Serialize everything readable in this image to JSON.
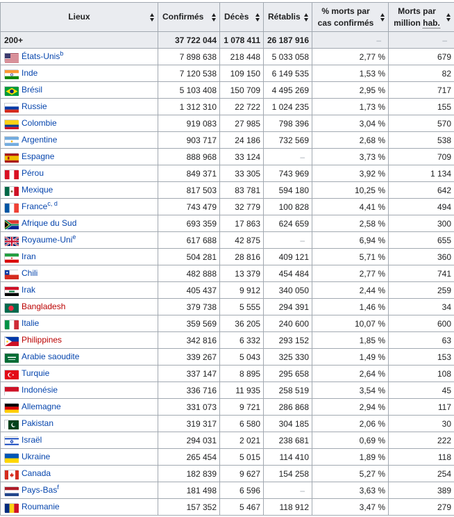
{
  "headers": [
    {
      "label": "Lieux"
    },
    {
      "label": "Confirmés"
    },
    {
      "label": "Décès"
    },
    {
      "label": "Rétablis"
    },
    {
      "label_line1": "% morts par",
      "label_line2": "cas confirmés"
    },
    {
      "label_line1": "Morts par",
      "label_line2_a": "million ",
      "label_line2_abbr": "hab."
    }
  ],
  "total": {
    "location": "200+",
    "confirmed": "37 722 044",
    "deaths": "1 078 411",
    "recovered": "26 187 916",
    "pct": "–",
    "per_million": "–"
  },
  "rows": [
    {
      "flag": "us",
      "location": "États-Unis",
      "sup": "b",
      "confirmed": "7 898 638",
      "deaths": "218 448",
      "recovered": "5 033 058",
      "pct": "2,77 %",
      "per_million": "679",
      "red": false
    },
    {
      "flag": "in",
      "location": "Inde",
      "sup": "",
      "confirmed": "7 120 538",
      "deaths": "109 150",
      "recovered": "6 149 535",
      "pct": "1,53 %",
      "per_million": "82",
      "red": false
    },
    {
      "flag": "br",
      "location": "Brésil",
      "sup": "",
      "confirmed": "5 103 408",
      "deaths": "150 709",
      "recovered": "4 495 269",
      "pct": "2,95 %",
      "per_million": "717",
      "red": false
    },
    {
      "flag": "ru",
      "location": "Russie",
      "sup": "",
      "confirmed": "1 312 310",
      "deaths": "22 722",
      "recovered": "1 024 235",
      "pct": "1,73 %",
      "per_million": "155",
      "red": false
    },
    {
      "flag": "co",
      "location": "Colombie",
      "sup": "",
      "confirmed": "919 083",
      "deaths": "27 985",
      "recovered": "798 396",
      "pct": "3,04 %",
      "per_million": "570",
      "red": false
    },
    {
      "flag": "ar",
      "location": "Argentine",
      "sup": "",
      "confirmed": "903 717",
      "deaths": "24 186",
      "recovered": "732 569",
      "pct": "2,68 %",
      "per_million": "538",
      "red": false
    },
    {
      "flag": "es",
      "location": "Espagne",
      "sup": "",
      "confirmed": "888 968",
      "deaths": "33 124",
      "recovered": "–",
      "pct": "3,73 %",
      "per_million": "709",
      "red": false
    },
    {
      "flag": "pe",
      "location": "Pérou",
      "sup": "",
      "confirmed": "849 371",
      "deaths": "33 305",
      "recovered": "743 969",
      "pct": "3,92 %",
      "per_million": "1 134",
      "red": false
    },
    {
      "flag": "mx",
      "location": "Mexique",
      "sup": "",
      "confirmed": "817 503",
      "deaths": "83 781",
      "recovered": "594 180",
      "pct": "10,25 %",
      "per_million": "642",
      "red": false
    },
    {
      "flag": "fr",
      "location": "France",
      "sup": "c, d",
      "confirmed": "743 479",
      "deaths": "32 779",
      "recovered": "100 828",
      "pct": "4,41 %",
      "per_million": "494",
      "red": false
    },
    {
      "flag": "za",
      "location": "Afrique du Sud",
      "sup": "",
      "confirmed": "693 359",
      "deaths": "17 863",
      "recovered": "624 659",
      "pct": "2,58 %",
      "per_million": "300",
      "red": false
    },
    {
      "flag": "gb",
      "location": "Royaume-Uni",
      "sup": "e",
      "confirmed": "617 688",
      "deaths": "42 875",
      "recovered": "–",
      "pct": "6,94 %",
      "per_million": "655",
      "red": false
    },
    {
      "flag": "ir",
      "location": "Iran",
      "sup": "",
      "confirmed": "504 281",
      "deaths": "28 816",
      "recovered": "409 121",
      "pct": "5,71 %",
      "per_million": "360",
      "red": false
    },
    {
      "flag": "cl",
      "location": "Chili",
      "sup": "",
      "confirmed": "482 888",
      "deaths": "13 379",
      "recovered": "454 484",
      "pct": "2,77 %",
      "per_million": "741",
      "red": false
    },
    {
      "flag": "iq",
      "location": "Irak",
      "sup": "",
      "confirmed": "405 437",
      "deaths": "9 912",
      "recovered": "340 050",
      "pct": "2,44 %",
      "per_million": "259",
      "red": false
    },
    {
      "flag": "bd",
      "location": "Bangladesh",
      "sup": "",
      "confirmed": "379 738",
      "deaths": "5 555",
      "recovered": "294 391",
      "pct": "1,46 %",
      "per_million": "34",
      "red": true
    },
    {
      "flag": "it",
      "location": "Italie",
      "sup": "",
      "confirmed": "359 569",
      "deaths": "36 205",
      "recovered": "240 600",
      "pct": "10,07 %",
      "per_million": "600",
      "red": false
    },
    {
      "flag": "ph",
      "location": "Philippines",
      "sup": "",
      "confirmed": "342 816",
      "deaths": "6 332",
      "recovered": "293 152",
      "pct": "1,85 %",
      "per_million": "63",
      "red": true
    },
    {
      "flag": "sa",
      "location": "Arabie saoudite",
      "sup": "",
      "confirmed": "339 267",
      "deaths": "5 043",
      "recovered": "325 330",
      "pct": "1,49 %",
      "per_million": "153",
      "red": false
    },
    {
      "flag": "tr",
      "location": "Turquie",
      "sup": "",
      "confirmed": "337 147",
      "deaths": "8 895",
      "recovered": "295 658",
      "pct": "2,64 %",
      "per_million": "108",
      "red": false
    },
    {
      "flag": "id",
      "location": "Indonésie",
      "sup": "",
      "confirmed": "336 716",
      "deaths": "11 935",
      "recovered": "258 519",
      "pct": "3,54 %",
      "per_million": "45",
      "red": false
    },
    {
      "flag": "de",
      "location": "Allemagne",
      "sup": "",
      "confirmed": "331 073",
      "deaths": "9 721",
      "recovered": "286 868",
      "pct": "2,94 %",
      "per_million": "117",
      "red": false
    },
    {
      "flag": "pk",
      "location": "Pakistan",
      "sup": "",
      "confirmed": "319 317",
      "deaths": "6 580",
      "recovered": "304 185",
      "pct": "2,06 %",
      "per_million": "30",
      "red": false
    },
    {
      "flag": "il",
      "location": "Israël",
      "sup": "",
      "confirmed": "294 031",
      "deaths": "2 021",
      "recovered": "238 681",
      "pct": "0,69 %",
      "per_million": "222",
      "red": false
    },
    {
      "flag": "ua",
      "location": "Ukraine",
      "sup": "",
      "confirmed": "265 454",
      "deaths": "5 015",
      "recovered": "114 410",
      "pct": "1,89 %",
      "per_million": "118",
      "red": false
    },
    {
      "flag": "ca",
      "location": "Canada",
      "sup": "",
      "confirmed": "182 839",
      "deaths": "9 627",
      "recovered": "154 258",
      "pct": "5,27 %",
      "per_million": "254",
      "red": false
    },
    {
      "flag": "nl",
      "location": "Pays-Bas",
      "sup": "f",
      "confirmed": "181 498",
      "deaths": "6 596",
      "recovered": "–",
      "pct": "3,63 %",
      "per_million": "389",
      "red": false
    },
    {
      "flag": "ro",
      "location": "Roumanie",
      "sup": "",
      "confirmed": "157 352",
      "deaths": "5 467",
      "recovered": "118 912",
      "pct": "3,47 %",
      "per_million": "279",
      "red": false
    }
  ]
}
